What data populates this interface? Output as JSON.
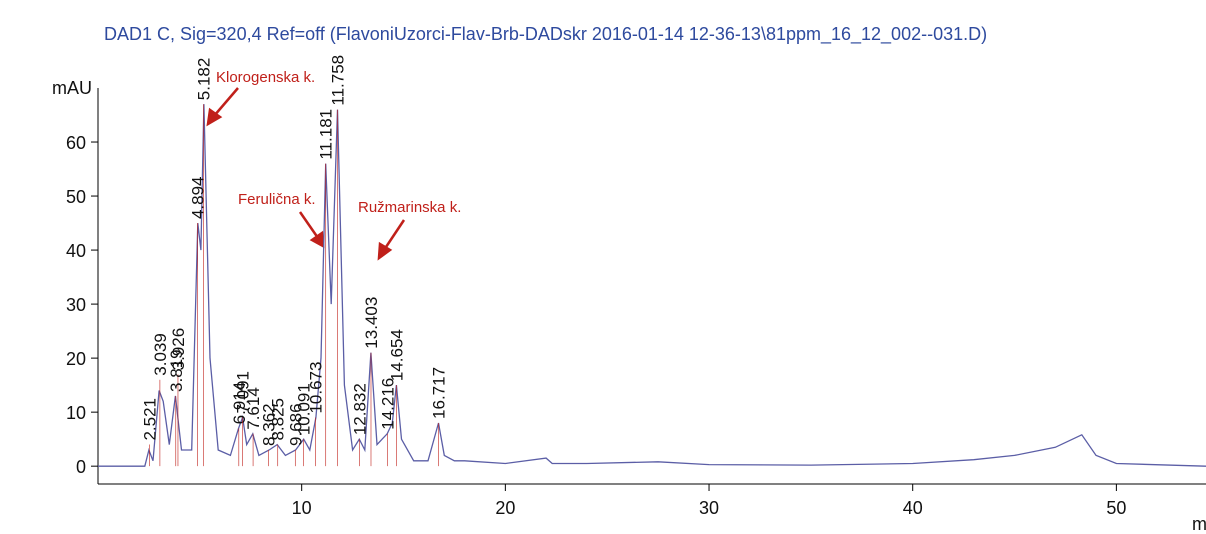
{
  "chart_data": {
    "type": "line",
    "title": "DAD1 C, Sig=320,4 Ref=off (FlavoniUzorci-Flav-Brb-DADskr 2016-01-14 12-36-13\\81ppm_16_12_002--031.D)",
    "y_label": "mAU",
    "x_label": "mi",
    "xlim": [
      0,
      54.4
    ],
    "ylim": [
      -3.3,
      70
    ],
    "xticks": [
      10,
      20,
      30,
      40,
      50
    ],
    "yticks": [
      0,
      10,
      20,
      30,
      40,
      50,
      60
    ],
    "series": [
      {
        "name": "DAD1 C",
        "color": "#5b5ea6",
        "x": [
          0,
          2.3,
          2.5,
          2.7,
          3.0,
          3.2,
          3.5,
          3.8,
          4.1,
          4.6,
          4.9,
          5.05,
          5.2,
          5.5,
          5.9,
          6.5,
          6.9,
          7.1,
          7.3,
          7.6,
          7.9,
          8.4,
          8.8,
          9.2,
          9.7,
          10.1,
          10.4,
          10.7,
          10.95,
          11.18,
          11.45,
          11.76,
          12.1,
          12.5,
          12.83,
          13.1,
          13.4,
          13.7,
          14.2,
          14.45,
          14.65,
          14.9,
          15.5,
          16.2,
          16.72,
          17.0,
          17.5,
          18,
          20,
          22,
          22.3,
          24,
          27.5,
          30,
          35,
          40,
          43,
          45,
          47,
          48.3,
          49,
          50,
          54.4
        ],
        "values": [
          0,
          0,
          3,
          1,
          14,
          12,
          4,
          13,
          3,
          3,
          45,
          40,
          67,
          20,
          3,
          2,
          7,
          9,
          4,
          6,
          2,
          3,
          4,
          2,
          3,
          5,
          3,
          9,
          20,
          56,
          30,
          66,
          15,
          3,
          5,
          3,
          21,
          4,
          6,
          8,
          15,
          5,
          1,
          1,
          8,
          2,
          1,
          1,
          0.5,
          1.5,
          0.5,
          0.5,
          0.8,
          0.3,
          0.2,
          0.5,
          1.2,
          2,
          3.5,
          5.8,
          2,
          0.5,
          0
        ]
      }
    ],
    "peaks": [
      {
        "time": 2.521,
        "height": 4
      },
      {
        "time": 3.039,
        "height": 16
      },
      {
        "time": 3.926,
        "height": 17
      },
      {
        "time": 3.819,
        "height": 13
      },
      {
        "time": 4.894,
        "height": 45
      },
      {
        "time": 5.182,
        "height": 67
      },
      {
        "time": 6.914,
        "height": 7
      },
      {
        "time": 7.091,
        "height": 9
      },
      {
        "time": 7.614,
        "height": 6
      },
      {
        "time": 8.362,
        "height": 3
      },
      {
        "time": 8.825,
        "height": 4
      },
      {
        "time": 9.686,
        "height": 3
      },
      {
        "time": 10.091,
        "height": 5
      },
      {
        "time": 10.673,
        "height": 9
      },
      {
        "time": 11.181,
        "height": 56
      },
      {
        "time": 11.758,
        "height": 66
      },
      {
        "time": 12.832,
        "height": 5
      },
      {
        "time": 13.403,
        "height": 21
      },
      {
        "time": 14.216,
        "height": 6
      },
      {
        "time": 14.654,
        "height": 15
      },
      {
        "time": 16.717,
        "height": 8
      }
    ],
    "annotations": [
      "Klorogenska k.",
      "Ferulična k.",
      "Ružmarinska k."
    ]
  }
}
